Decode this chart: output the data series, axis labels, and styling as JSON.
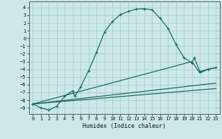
{
  "xlabel": "Humidex (Indice chaleur)",
  "bg_color": "#cce8e8",
  "line_color": "#1a6b5e",
  "grid_color": "#a0c8c8",
  "xlim": [
    -0.5,
    23.5
  ],
  "ylim": [
    -9.8,
    4.8
  ],
  "yticks": [
    4,
    3,
    2,
    1,
    0,
    -1,
    -2,
    -3,
    -4,
    -5,
    -6,
    -7,
    -8,
    -9
  ],
  "xticks": [
    0,
    1,
    2,
    3,
    4,
    5,
    6,
    7,
    8,
    9,
    10,
    11,
    12,
    13,
    14,
    15,
    16,
    17,
    18,
    19,
    20,
    21,
    22,
    23
  ],
  "curve1_x": [
    0,
    1,
    2,
    3,
    4,
    5,
    5.3,
    6,
    7,
    8,
    9,
    10,
    11,
    12,
    13,
    14,
    15,
    16,
    17,
    18,
    19,
    20,
    20.3,
    21,
    22,
    23
  ],
  "curve1_y": [
    -8.5,
    -9.0,
    -9.3,
    -8.8,
    -7.5,
    -6.8,
    -7.5,
    -6.3,
    -4.2,
    -1.8,
    0.8,
    2.2,
    3.1,
    3.5,
    3.8,
    3.85,
    3.7,
    2.6,
    1.3,
    -0.8,
    -2.5,
    -3.2,
    -2.5,
    -4.3,
    -4.0,
    -3.8
  ],
  "curve2_x": [
    0,
    20,
    21,
    22,
    23
  ],
  "curve2_y": [
    -8.5,
    -3.0,
    -4.5,
    -4.0,
    -3.8
  ],
  "curve3_x": [
    0,
    23
  ],
  "curve3_y": [
    -8.5,
    -5.8
  ],
  "curve4_x": [
    0,
    23
  ],
  "curve4_y": [
    -8.5,
    -6.5
  ],
  "marker": "+",
  "markersize": 3.5,
  "linewidth": 0.9
}
